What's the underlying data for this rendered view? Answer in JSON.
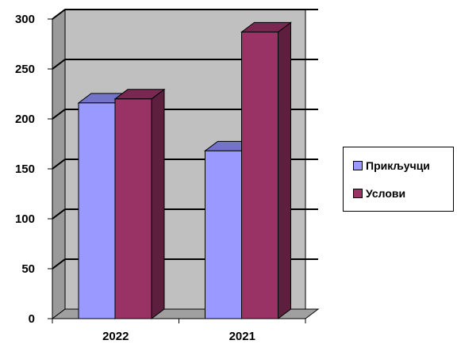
{
  "chart_data": {
    "type": "bar",
    "title": "",
    "xlabel": "",
    "ylabel": "",
    "categories": [
      "2022",
      "2021"
    ],
    "series": [
      {
        "name": "Прикључци",
        "values": [
          216,
          168
        ],
        "color": "#9999FF",
        "top_color": "#7373C8",
        "side_color": "#6E6EBE"
      },
      {
        "name": "Услови",
        "values": [
          220,
          287
        ],
        "color": "#993366",
        "top_color": "#7A2852",
        "side_color": "#5C1F3E"
      }
    ],
    "ylim": [
      0,
      300
    ],
    "yticks": [
      "0",
      "50",
      "100",
      "150",
      "200",
      "250",
      "300"
    ],
    "grid": true,
    "legend_position": "right",
    "plot_background": "#C0C0C0"
  }
}
